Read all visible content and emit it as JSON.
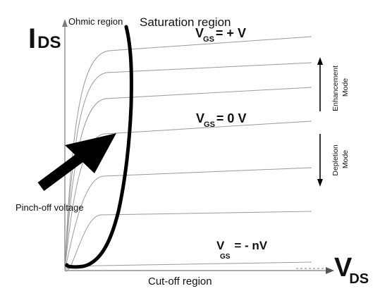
{
  "labels": {
    "y_axis_main": "I",
    "y_axis_sub": "DS",
    "x_axis_main": "V",
    "x_axis_sub": "DS",
    "ohmic_region": "Ohmic region",
    "saturation_region": "Saturation region",
    "cutoff_region": "Cut-off region",
    "pinch_off": "Pinch-off voltage",
    "vgs_plus_main": "V",
    "vgs_plus_sub": "GS",
    "vgs_plus_value": "= + V",
    "vgs_zero_main": "V",
    "vgs_zero_sub": "GS",
    "vgs_zero_value": "= 0 V",
    "vgs_neg_main": "V",
    "vgs_neg_sub": "GS",
    "vgs_neg_value": "= - nV",
    "enhancement_line1": "Enhancement",
    "enhancement_line2": "Mode",
    "depletion_line1": "Depletion",
    "depletion_line2": "Mode"
  },
  "curve_count": 6,
  "colors": {
    "axis": "#7a7a7a",
    "curve": "#9a9a9a",
    "ink": "#000000",
    "text": "#111111"
  }
}
